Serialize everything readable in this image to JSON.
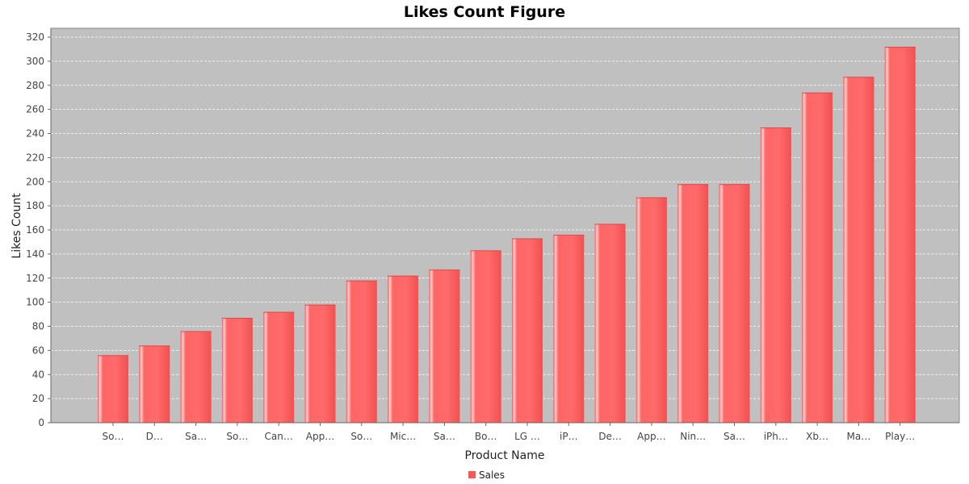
{
  "chart_data": {
    "type": "bar",
    "title": "Likes Count Figure",
    "xlabel": "Product Name",
    "ylabel": "Likes Count",
    "ylim": [
      0,
      320
    ],
    "yticks": [
      0,
      20,
      40,
      60,
      80,
      100,
      120,
      140,
      160,
      180,
      200,
      220,
      240,
      260,
      280,
      300,
      320
    ],
    "grid": true,
    "legend_position": "bottom",
    "categories": [
      "So…",
      "D…",
      "Sa…",
      "So…",
      "Can…",
      "App…",
      "So…",
      "Mic…",
      "Sa…",
      "Bo…",
      "LG …",
      "iP…",
      "De…",
      "App…",
      "Nin…",
      "Sa…",
      "iPh…",
      "Xb…",
      "Ma…",
      "Play…"
    ],
    "series": [
      {
        "name": "Sales",
        "color": "#ff5555",
        "values": [
          56,
          64,
          76,
          87,
          92,
          98,
          118,
          122,
          127,
          143,
          153,
          156,
          165,
          187,
          198,
          198,
          245,
          274,
          287,
          312
        ]
      }
    ],
    "plot_background": "#c0c0c0"
  }
}
